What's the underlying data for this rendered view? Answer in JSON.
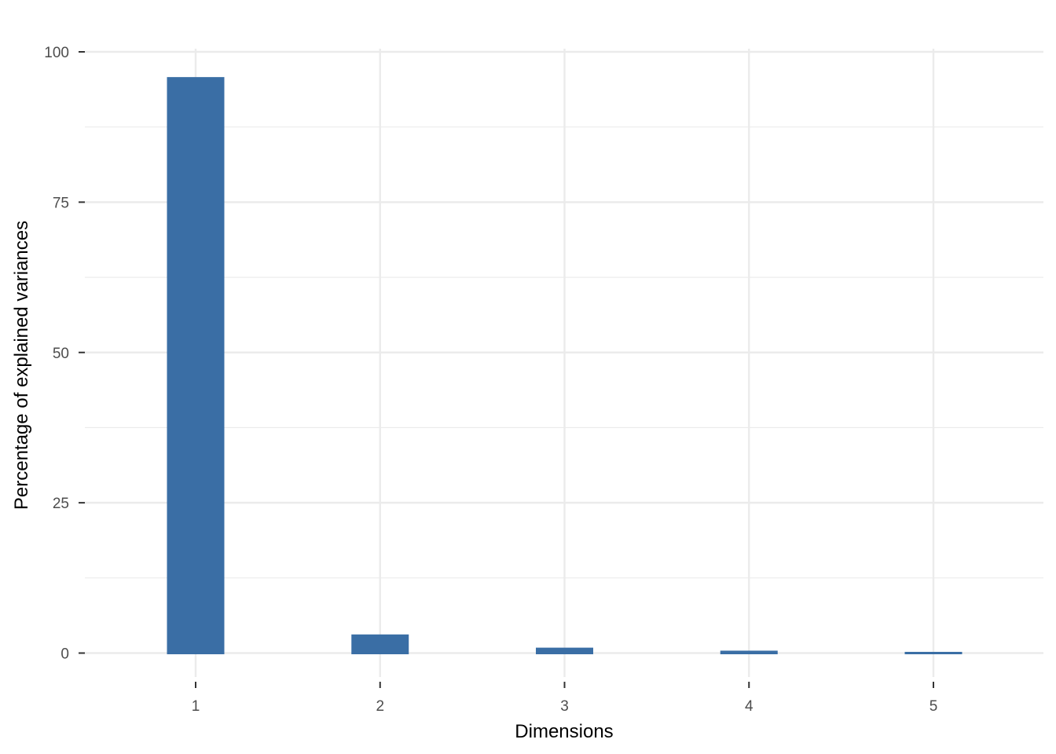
{
  "chart_data": {
    "type": "bar",
    "categories": [
      "1",
      "2",
      "3",
      "4",
      "5"
    ],
    "values": [
      95.8,
      3.1,
      0.9,
      0.4,
      0.2
    ],
    "title": "",
    "xlabel": "Dimensions",
    "ylabel": "Percentage of explained variances",
    "ylim": [
      0,
      100
    ],
    "yticks": [
      0,
      25,
      50,
      75,
      100
    ],
    "ytick_labels": [
      "0",
      "25",
      "50",
      "75",
      "100"
    ],
    "grid": true,
    "bar_color": "#3a6ea5",
    "grid_color": "#ebebeb"
  }
}
